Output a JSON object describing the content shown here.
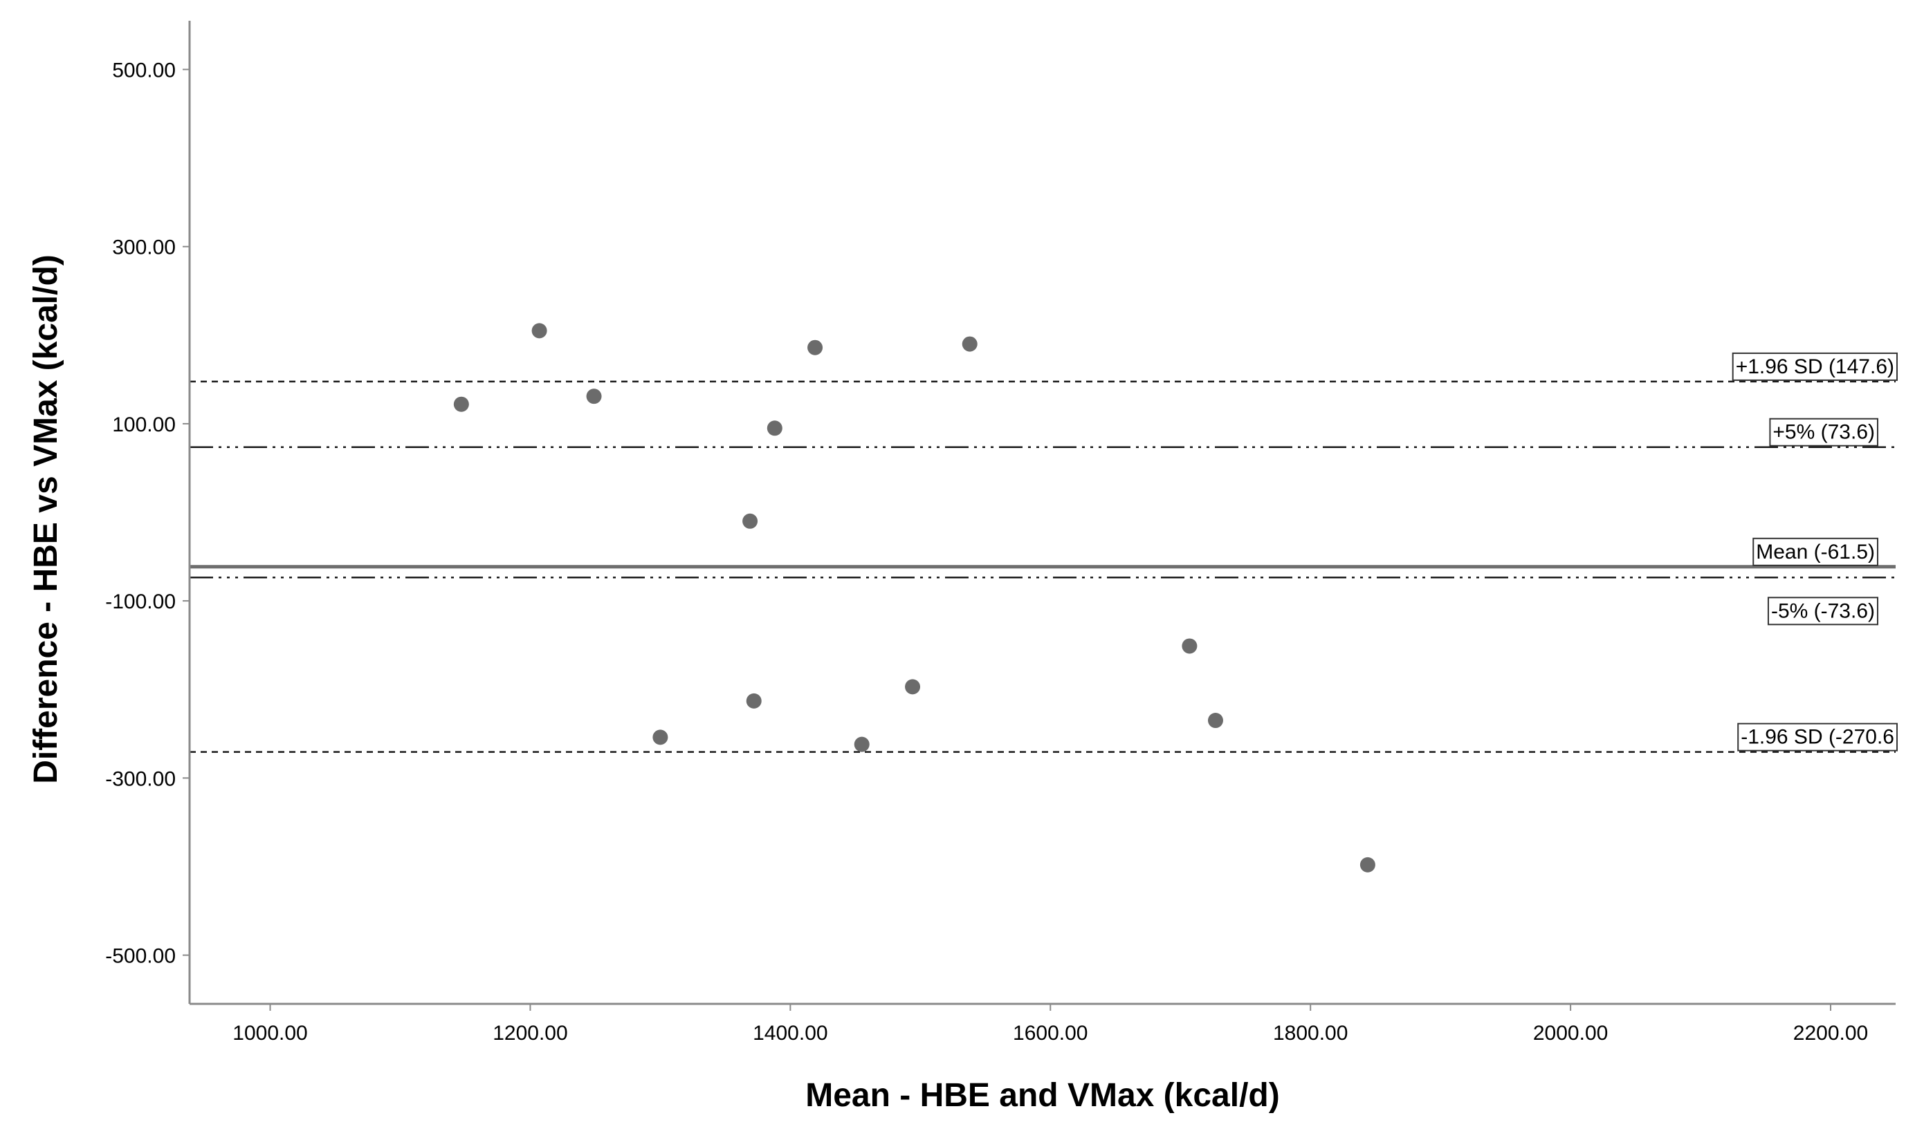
{
  "chart_data": {
    "type": "scatter",
    "title": "",
    "xlabel": "Mean - HBE and VMax (kcal/d)",
    "ylabel": "Difference - HBE vs VMax (kcal/d)",
    "xlim": [
      938,
      2250
    ],
    "ylim": [
      -555,
      555
    ],
    "x_ticks": [
      {
        "value": 1000,
        "label": "1000.00"
      },
      {
        "value": 1200,
        "label": "1200.00"
      },
      {
        "value": 1400,
        "label": "1400.00"
      },
      {
        "value": 1600,
        "label": "1600.00"
      },
      {
        "value": 1800,
        "label": "1800.00"
      },
      {
        "value": 2000,
        "label": "2000.00"
      },
      {
        "value": 2200,
        "label": "2200.00"
      }
    ],
    "y_ticks": [
      {
        "value": 500,
        "label": "500.00"
      },
      {
        "value": 300,
        "label": "300.00"
      },
      {
        "value": 100,
        "label": "100.00"
      },
      {
        "value": -100,
        "label": "-100.00"
      },
      {
        "value": -300,
        "label": "-300.00"
      },
      {
        "value": -500,
        "label": "-500.00"
      }
    ],
    "grid": false,
    "marker_color": "#6b6b6b",
    "points": [
      {
        "x": 1147,
        "y": 122
      },
      {
        "x": 1207,
        "y": 205
      },
      {
        "x": 1249,
        "y": 131
      },
      {
        "x": 1300,
        "y": -254
      },
      {
        "x": 1369,
        "y": -10
      },
      {
        "x": 1372,
        "y": -213
      },
      {
        "x": 1388,
        "y": 95
      },
      {
        "x": 1419,
        "y": 186
      },
      {
        "x": 1455,
        "y": -262
      },
      {
        "x": 1494,
        "y": -197
      },
      {
        "x": 1538,
        "y": 190
      },
      {
        "x": 1707,
        "y": -151
      },
      {
        "x": 1727,
        "y": -235
      },
      {
        "x": 1844,
        "y": -398
      }
    ],
    "reference_lines": [
      {
        "id": "upper-loa",
        "y": 147.6,
        "style": "dashed",
        "label": "+1.96 SD (147.6)"
      },
      {
        "id": "plus-5pct",
        "y": 73.6,
        "style": "dash-dot-dot",
        "label": "+5% (73.6)"
      },
      {
        "id": "mean",
        "y": -61.5,
        "style": "solid",
        "label": "Mean (-61.5)"
      },
      {
        "id": "minus-5pct",
        "y": -73.6,
        "style": "dash-dot-dot",
        "label": "-5% (-73.6)"
      },
      {
        "id": "lower-loa",
        "y": -270.6,
        "style": "dashed",
        "label": "-1.96 SD (-270.6"
      }
    ]
  }
}
